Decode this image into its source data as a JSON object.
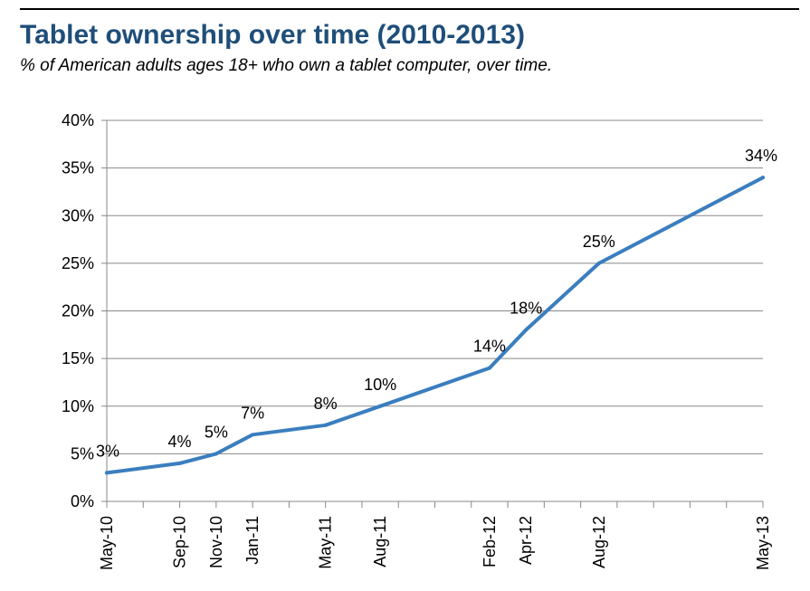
{
  "title": "Tablet ownership over time (2010-2013)",
  "subtitle": "% of American adults ages 18+ who own a tablet computer, over time.",
  "colors": {
    "title": "#1f4e79",
    "line": "#3a7ebf",
    "grid": "#888888"
  },
  "chart_data": {
    "type": "line",
    "title": "Tablet ownership over time (2010-2013)",
    "subtitle": "% of American adults ages 18+ who own a tablet computer, over time.",
    "xlabel": "",
    "ylabel": "",
    "x": [
      "May-10",
      "Sep-10",
      "Nov-10",
      "Jan-11",
      "May-11",
      "Aug-11",
      "Feb-12",
      "Apr-12",
      "Aug-12",
      "May-13"
    ],
    "series": [
      {
        "values": [
          3,
          4,
          5,
          7,
          8,
          10,
          14,
          18,
          25,
          34
        ]
      }
    ],
    "data_labels": [
      "3%",
      "4%",
      "5%",
      "7%",
      "8%",
      "10%",
      "14%",
      "18%",
      "25%",
      "34%"
    ],
    "y_ticks": [
      "0%",
      "5%",
      "10%",
      "15%",
      "20%",
      "25%",
      "30%",
      "35%",
      "40%"
    ],
    "ylim": [
      0,
      40
    ],
    "xlim": [
      "May-10",
      "May-13"
    ],
    "x_axis_type": "monthly time axis",
    "grid": "horizontal",
    "legend": "none"
  }
}
